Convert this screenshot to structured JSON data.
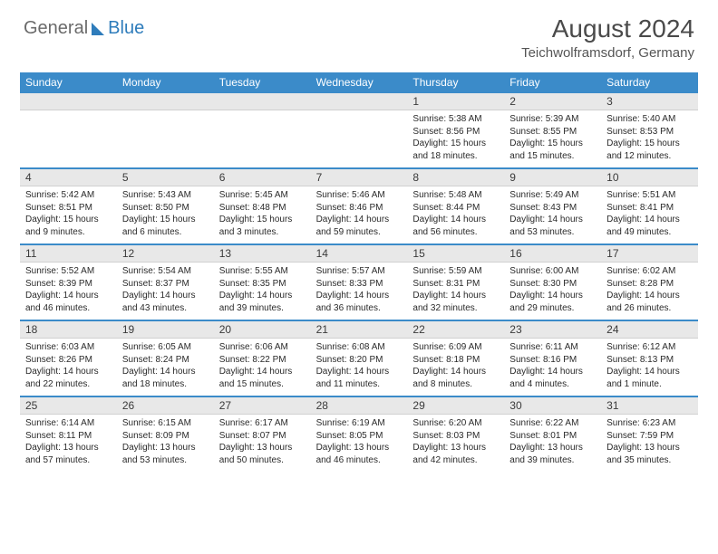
{
  "brand": {
    "part1": "General",
    "part2": "Blue"
  },
  "title": "August 2024",
  "subtitle": "Teichwolframsdorf, Germany",
  "colors": {
    "header_bg": "#3b8bc9",
    "header_text": "#ffffff",
    "daynum_bg": "#e8e8e8",
    "separator": "#3b8bc9",
    "page_bg": "#ffffff",
    "brand_gray": "#6a6a6a",
    "brand_blue": "#2e7cbb"
  },
  "weekdays": [
    "Sunday",
    "Monday",
    "Tuesday",
    "Wednesday",
    "Thursday",
    "Friday",
    "Saturday"
  ],
  "weeks": [
    {
      "days": [
        {
          "num": "",
          "sunrise": "",
          "sunset": "",
          "daylight1": "",
          "daylight2": ""
        },
        {
          "num": "",
          "sunrise": "",
          "sunset": "",
          "daylight1": "",
          "daylight2": ""
        },
        {
          "num": "",
          "sunrise": "",
          "sunset": "",
          "daylight1": "",
          "daylight2": ""
        },
        {
          "num": "",
          "sunrise": "",
          "sunset": "",
          "daylight1": "",
          "daylight2": ""
        },
        {
          "num": "1",
          "sunrise": "Sunrise: 5:38 AM",
          "sunset": "Sunset: 8:56 PM",
          "daylight1": "Daylight: 15 hours",
          "daylight2": "and 18 minutes."
        },
        {
          "num": "2",
          "sunrise": "Sunrise: 5:39 AM",
          "sunset": "Sunset: 8:55 PM",
          "daylight1": "Daylight: 15 hours",
          "daylight2": "and 15 minutes."
        },
        {
          "num": "3",
          "sunrise": "Sunrise: 5:40 AM",
          "sunset": "Sunset: 8:53 PM",
          "daylight1": "Daylight: 15 hours",
          "daylight2": "and 12 minutes."
        }
      ]
    },
    {
      "days": [
        {
          "num": "4",
          "sunrise": "Sunrise: 5:42 AM",
          "sunset": "Sunset: 8:51 PM",
          "daylight1": "Daylight: 15 hours",
          "daylight2": "and 9 minutes."
        },
        {
          "num": "5",
          "sunrise": "Sunrise: 5:43 AM",
          "sunset": "Sunset: 8:50 PM",
          "daylight1": "Daylight: 15 hours",
          "daylight2": "and 6 minutes."
        },
        {
          "num": "6",
          "sunrise": "Sunrise: 5:45 AM",
          "sunset": "Sunset: 8:48 PM",
          "daylight1": "Daylight: 15 hours",
          "daylight2": "and 3 minutes."
        },
        {
          "num": "7",
          "sunrise": "Sunrise: 5:46 AM",
          "sunset": "Sunset: 8:46 PM",
          "daylight1": "Daylight: 14 hours",
          "daylight2": "and 59 minutes."
        },
        {
          "num": "8",
          "sunrise": "Sunrise: 5:48 AM",
          "sunset": "Sunset: 8:44 PM",
          "daylight1": "Daylight: 14 hours",
          "daylight2": "and 56 minutes."
        },
        {
          "num": "9",
          "sunrise": "Sunrise: 5:49 AM",
          "sunset": "Sunset: 8:43 PM",
          "daylight1": "Daylight: 14 hours",
          "daylight2": "and 53 minutes."
        },
        {
          "num": "10",
          "sunrise": "Sunrise: 5:51 AM",
          "sunset": "Sunset: 8:41 PM",
          "daylight1": "Daylight: 14 hours",
          "daylight2": "and 49 minutes."
        }
      ]
    },
    {
      "days": [
        {
          "num": "11",
          "sunrise": "Sunrise: 5:52 AM",
          "sunset": "Sunset: 8:39 PM",
          "daylight1": "Daylight: 14 hours",
          "daylight2": "and 46 minutes."
        },
        {
          "num": "12",
          "sunrise": "Sunrise: 5:54 AM",
          "sunset": "Sunset: 8:37 PM",
          "daylight1": "Daylight: 14 hours",
          "daylight2": "and 43 minutes."
        },
        {
          "num": "13",
          "sunrise": "Sunrise: 5:55 AM",
          "sunset": "Sunset: 8:35 PM",
          "daylight1": "Daylight: 14 hours",
          "daylight2": "and 39 minutes."
        },
        {
          "num": "14",
          "sunrise": "Sunrise: 5:57 AM",
          "sunset": "Sunset: 8:33 PM",
          "daylight1": "Daylight: 14 hours",
          "daylight2": "and 36 minutes."
        },
        {
          "num": "15",
          "sunrise": "Sunrise: 5:59 AM",
          "sunset": "Sunset: 8:31 PM",
          "daylight1": "Daylight: 14 hours",
          "daylight2": "and 32 minutes."
        },
        {
          "num": "16",
          "sunrise": "Sunrise: 6:00 AM",
          "sunset": "Sunset: 8:30 PM",
          "daylight1": "Daylight: 14 hours",
          "daylight2": "and 29 minutes."
        },
        {
          "num": "17",
          "sunrise": "Sunrise: 6:02 AM",
          "sunset": "Sunset: 8:28 PM",
          "daylight1": "Daylight: 14 hours",
          "daylight2": "and 26 minutes."
        }
      ]
    },
    {
      "days": [
        {
          "num": "18",
          "sunrise": "Sunrise: 6:03 AM",
          "sunset": "Sunset: 8:26 PM",
          "daylight1": "Daylight: 14 hours",
          "daylight2": "and 22 minutes."
        },
        {
          "num": "19",
          "sunrise": "Sunrise: 6:05 AM",
          "sunset": "Sunset: 8:24 PM",
          "daylight1": "Daylight: 14 hours",
          "daylight2": "and 18 minutes."
        },
        {
          "num": "20",
          "sunrise": "Sunrise: 6:06 AM",
          "sunset": "Sunset: 8:22 PM",
          "daylight1": "Daylight: 14 hours",
          "daylight2": "and 15 minutes."
        },
        {
          "num": "21",
          "sunrise": "Sunrise: 6:08 AM",
          "sunset": "Sunset: 8:20 PM",
          "daylight1": "Daylight: 14 hours",
          "daylight2": "and 11 minutes."
        },
        {
          "num": "22",
          "sunrise": "Sunrise: 6:09 AM",
          "sunset": "Sunset: 8:18 PM",
          "daylight1": "Daylight: 14 hours",
          "daylight2": "and 8 minutes."
        },
        {
          "num": "23",
          "sunrise": "Sunrise: 6:11 AM",
          "sunset": "Sunset: 8:16 PM",
          "daylight1": "Daylight: 14 hours",
          "daylight2": "and 4 minutes."
        },
        {
          "num": "24",
          "sunrise": "Sunrise: 6:12 AM",
          "sunset": "Sunset: 8:13 PM",
          "daylight1": "Daylight: 14 hours",
          "daylight2": "and 1 minute."
        }
      ]
    },
    {
      "days": [
        {
          "num": "25",
          "sunrise": "Sunrise: 6:14 AM",
          "sunset": "Sunset: 8:11 PM",
          "daylight1": "Daylight: 13 hours",
          "daylight2": "and 57 minutes."
        },
        {
          "num": "26",
          "sunrise": "Sunrise: 6:15 AM",
          "sunset": "Sunset: 8:09 PM",
          "daylight1": "Daylight: 13 hours",
          "daylight2": "and 53 minutes."
        },
        {
          "num": "27",
          "sunrise": "Sunrise: 6:17 AM",
          "sunset": "Sunset: 8:07 PM",
          "daylight1": "Daylight: 13 hours",
          "daylight2": "and 50 minutes."
        },
        {
          "num": "28",
          "sunrise": "Sunrise: 6:19 AM",
          "sunset": "Sunset: 8:05 PM",
          "daylight1": "Daylight: 13 hours",
          "daylight2": "and 46 minutes."
        },
        {
          "num": "29",
          "sunrise": "Sunrise: 6:20 AM",
          "sunset": "Sunset: 8:03 PM",
          "daylight1": "Daylight: 13 hours",
          "daylight2": "and 42 minutes."
        },
        {
          "num": "30",
          "sunrise": "Sunrise: 6:22 AM",
          "sunset": "Sunset: 8:01 PM",
          "daylight1": "Daylight: 13 hours",
          "daylight2": "and 39 minutes."
        },
        {
          "num": "31",
          "sunrise": "Sunrise: 6:23 AM",
          "sunset": "Sunset: 7:59 PM",
          "daylight1": "Daylight: 13 hours",
          "daylight2": "and 35 minutes."
        }
      ]
    }
  ]
}
